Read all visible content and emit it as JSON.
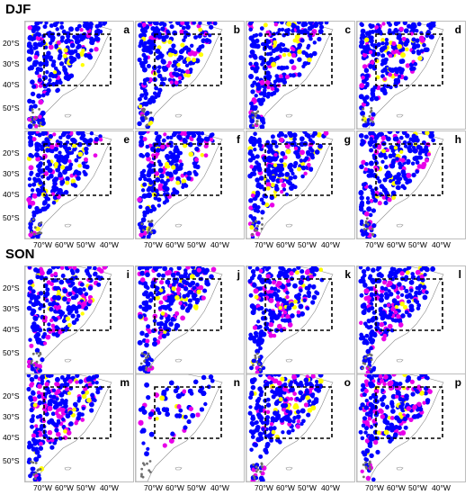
{
  "seasons": [
    "DJF",
    "SON"
  ],
  "panel_labels": [
    "a",
    "b",
    "c",
    "d",
    "e",
    "f",
    "g",
    "h",
    "i",
    "j",
    "k",
    "l",
    "m",
    "n",
    "o",
    "p"
  ],
  "lat_ticks": [
    "20°S",
    "30°S",
    "40°S",
    "50°S"
  ],
  "lon_ticks": [
    "70°W",
    "60°W",
    "50°W",
    "40°W"
  ],
  "colors": {
    "category1": "#0000ff",
    "category2": "#e800e8",
    "category3": "#ffff00",
    "box": "#000000",
    "land": "#ffffff"
  }
}
